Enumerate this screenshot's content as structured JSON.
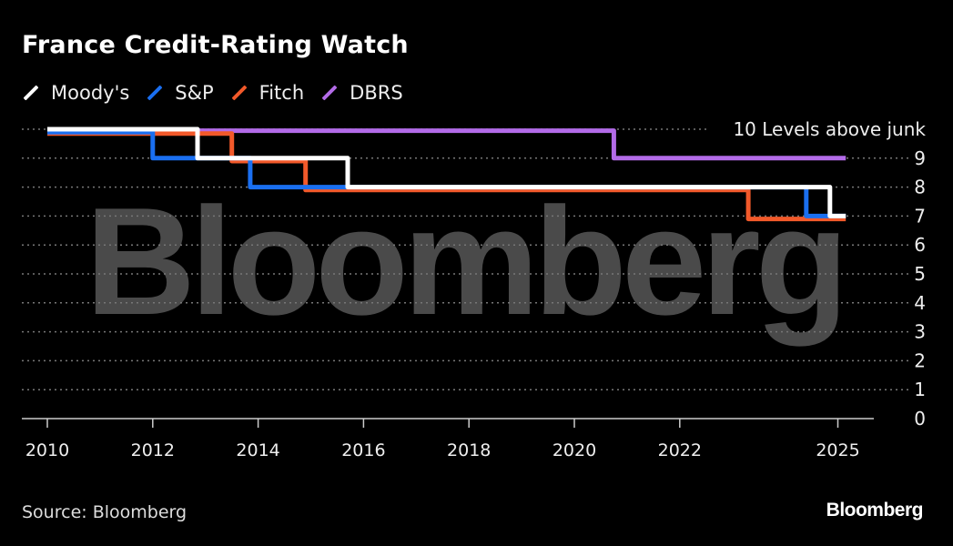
{
  "header": {
    "title": "France Credit-Rating Watch"
  },
  "footer": {
    "source": "Source: Bloomberg",
    "logo": "Bloomberg"
  },
  "watermark": "Bloomberg",
  "chart_data": {
    "type": "line",
    "step": true,
    "title": "France Credit-Rating Watch",
    "xlabel": "",
    "ylabel": "Levels above junk",
    "x_ticks": [
      2010,
      2012,
      2014,
      2016,
      2018,
      2020,
      2022,
      2025
    ],
    "y_ticks": [
      0,
      1,
      2,
      3,
      4,
      5,
      6,
      7,
      8,
      9
    ],
    "y_top_label": "10 Levels above junk",
    "xlim": [
      2010,
      2025.2
    ],
    "ylim": [
      0,
      10
    ],
    "grid": true,
    "legend_position": "top-left",
    "series": [
      {
        "name": "Moody's",
        "color": "#ffffff",
        "points": [
          [
            2010.0,
            10
          ],
          [
            2012.85,
            10
          ],
          [
            2012.85,
            9
          ],
          [
            2015.7,
            9
          ],
          [
            2015.7,
            8
          ],
          [
            2024.85,
            8
          ],
          [
            2024.85,
            7
          ],
          [
            2025.15,
            7
          ]
        ]
      },
      {
        "name": "S&P",
        "color": "#1a6ff0",
        "points": [
          [
            2010.0,
            9.9
          ],
          [
            2012.0,
            9.9
          ],
          [
            2012.0,
            9
          ],
          [
            2013.85,
            9
          ],
          [
            2013.85,
            8
          ],
          [
            2024.4,
            8
          ],
          [
            2024.4,
            7
          ],
          [
            2025.15,
            7
          ]
        ]
      },
      {
        "name": "Fitch",
        "color": "#f2592a",
        "points": [
          [
            2010.0,
            9.85
          ],
          [
            2013.5,
            9.85
          ],
          [
            2013.5,
            8.9
          ],
          [
            2014.9,
            8.9
          ],
          [
            2014.9,
            7.9
          ],
          [
            2023.3,
            7.9
          ],
          [
            2023.3,
            6.9
          ],
          [
            2025.15,
            6.9
          ]
        ]
      },
      {
        "name": "DBRS",
        "color": "#b36be8",
        "points": [
          [
            2012.85,
            9.95
          ],
          [
            2020.75,
            9.95
          ],
          [
            2020.75,
            9
          ],
          [
            2025.15,
            9
          ]
        ]
      }
    ]
  }
}
